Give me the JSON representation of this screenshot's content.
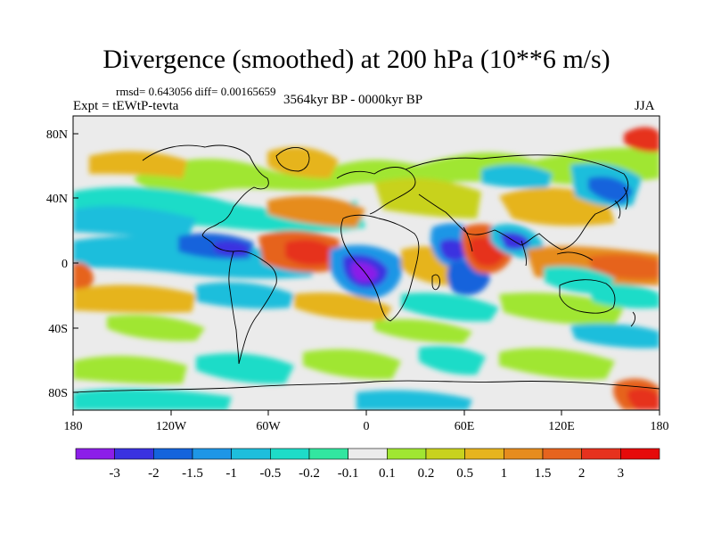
{
  "title": "Divergence (smoothed) at 200 hPa (10**6 m/s)",
  "stats": "rmsd= 0.643056 diff= 0.00165659",
  "expt": "Expt = tEWtP-tevta",
  "period": "3564kyr BP - 0000kyr BP",
  "season": "JJA",
  "axes": {
    "lat_ticks": [
      "80N",
      "40N",
      "0",
      "40S",
      "80S"
    ],
    "lon_ticks": [
      "180",
      "120W",
      "60W",
      "0",
      "60E",
      "120E",
      "180"
    ]
  },
  "colorbar": {
    "labels": [
      "-3",
      "-2",
      "-1.5",
      "-1",
      "-0.5",
      "-0.2",
      "-0.1",
      "0.1",
      "0.2",
      "0.5",
      "1",
      "1.5",
      "2",
      "3"
    ],
    "colors": [
      "#8c1ee8",
      "#3a32e0",
      "#1464dc",
      "#1e96e6",
      "#1ebedc",
      "#1edcc8",
      "#32e6a0",
      "#ebebeb",
      "#a0e632",
      "#c8d21e",
      "#e6b41e",
      "#e68c1e",
      "#e6641e",
      "#e6321e",
      "#e60a0a"
    ]
  }
}
